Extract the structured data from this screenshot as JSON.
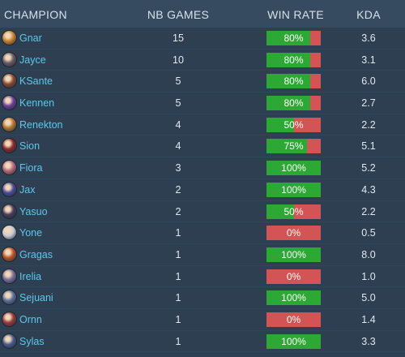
{
  "table": {
    "headers": {
      "champion": "CHAMPION",
      "games": "NB GAMES",
      "win_rate": "WIN RATE",
      "kda": "KDA"
    },
    "colors": {
      "win": "#2ea834",
      "loss": "#d35454",
      "name": "#5cc8ec"
    },
    "rows": [
      {
        "champion": "Gnar",
        "games": "15",
        "win_rate": "80%",
        "win_fraction": 0.8,
        "kda": "3.6",
        "icon": "gnar-portrait-icon",
        "tint": "#c9812f"
      },
      {
        "champion": "Jayce",
        "games": "10",
        "win_rate": "80%",
        "win_fraction": 0.8,
        "kda": "3.1",
        "icon": "jayce-portrait-icon",
        "tint": "#6a5a66"
      },
      {
        "champion": "KSante",
        "games": "5",
        "win_rate": "80%",
        "win_fraction": 0.8,
        "kda": "6.0",
        "icon": "ksante-portrait-icon",
        "tint": "#8a4a32"
      },
      {
        "champion": "Kennen",
        "games": "5",
        "win_rate": "80%",
        "win_fraction": 0.8,
        "kda": "2.7",
        "icon": "kennen-portrait-icon",
        "tint": "#6b3f9a"
      },
      {
        "champion": "Renekton",
        "games": "4",
        "win_rate": "50%",
        "win_fraction": 0.5,
        "kda": "2.2",
        "icon": "renekton-portrait-icon",
        "tint": "#b0762e"
      },
      {
        "champion": "Sion",
        "games": "4",
        "win_rate": "75%",
        "win_fraction": 0.75,
        "kda": "5.1",
        "icon": "sion-portrait-icon",
        "tint": "#8c2a2a"
      },
      {
        "champion": "Fiora",
        "games": "3",
        "win_rate": "100%",
        "win_fraction": 1.0,
        "kda": "5.2",
        "icon": "fiora-portrait-icon",
        "tint": "#b5687a"
      },
      {
        "champion": "Jax",
        "games": "2",
        "win_rate": "100%",
        "win_fraction": 1.0,
        "kda": "4.3",
        "icon": "jax-portrait-icon",
        "tint": "#4f4a9a"
      },
      {
        "champion": "Yasuo",
        "games": "2",
        "win_rate": "50%",
        "win_fraction": 0.5,
        "kda": "2.2",
        "icon": "yasuo-portrait-icon",
        "tint": "#4a3c5a"
      },
      {
        "champion": "Yone",
        "games": "1",
        "win_rate": "0%",
        "win_fraction": 0.0,
        "kda": "0.5",
        "icon": "yone-portrait-icon",
        "tint": "#c7c9d6"
      },
      {
        "champion": "Gragas",
        "games": "1",
        "win_rate": "100%",
        "win_fraction": 1.0,
        "kda": "8.0",
        "icon": "gragas-portrait-icon",
        "tint": "#b8542a"
      },
      {
        "champion": "Irelia",
        "games": "1",
        "win_rate": "0%",
        "win_fraction": 0.0,
        "kda": "1.0",
        "icon": "irelia-portrait-icon",
        "tint": "#7a6e9a"
      },
      {
        "champion": "Sejuani",
        "games": "1",
        "win_rate": "100%",
        "win_fraction": 1.0,
        "kda": "5.0",
        "icon": "sejuani-portrait-icon",
        "tint": "#5a6f9a"
      },
      {
        "champion": "Ornn",
        "games": "1",
        "win_rate": "0%",
        "win_fraction": 0.0,
        "kda": "1.4",
        "icon": "ornn-portrait-icon",
        "tint": "#9a3a3a"
      },
      {
        "champion": "Sylas",
        "games": "1",
        "win_rate": "100%",
        "win_fraction": 1.0,
        "kda": "3.3",
        "icon": "sylas-portrait-icon",
        "tint": "#4a5a8a"
      }
    ]
  }
}
